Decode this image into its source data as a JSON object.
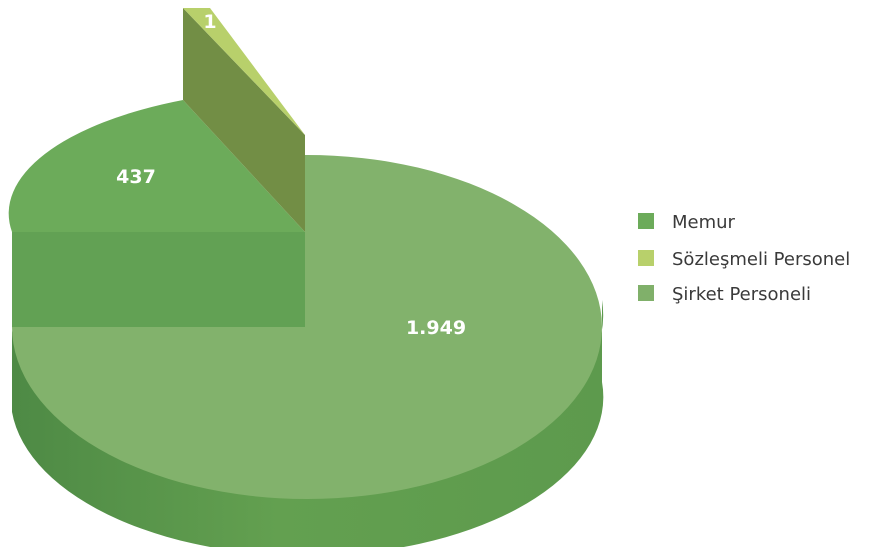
{
  "chart_data": {
    "type": "pie",
    "style": "3d-exploded",
    "categories": [
      "Memur",
      "Sözleşmeli Personel",
      "Şirket Personeli"
    ],
    "values": [
      437,
      1,
      1949
    ],
    "value_labels": [
      "437",
      "1",
      "1.949"
    ],
    "colors": [
      "#6cab5a",
      "#b8d06b",
      "#80b06a"
    ],
    "legend_position": "right"
  }
}
